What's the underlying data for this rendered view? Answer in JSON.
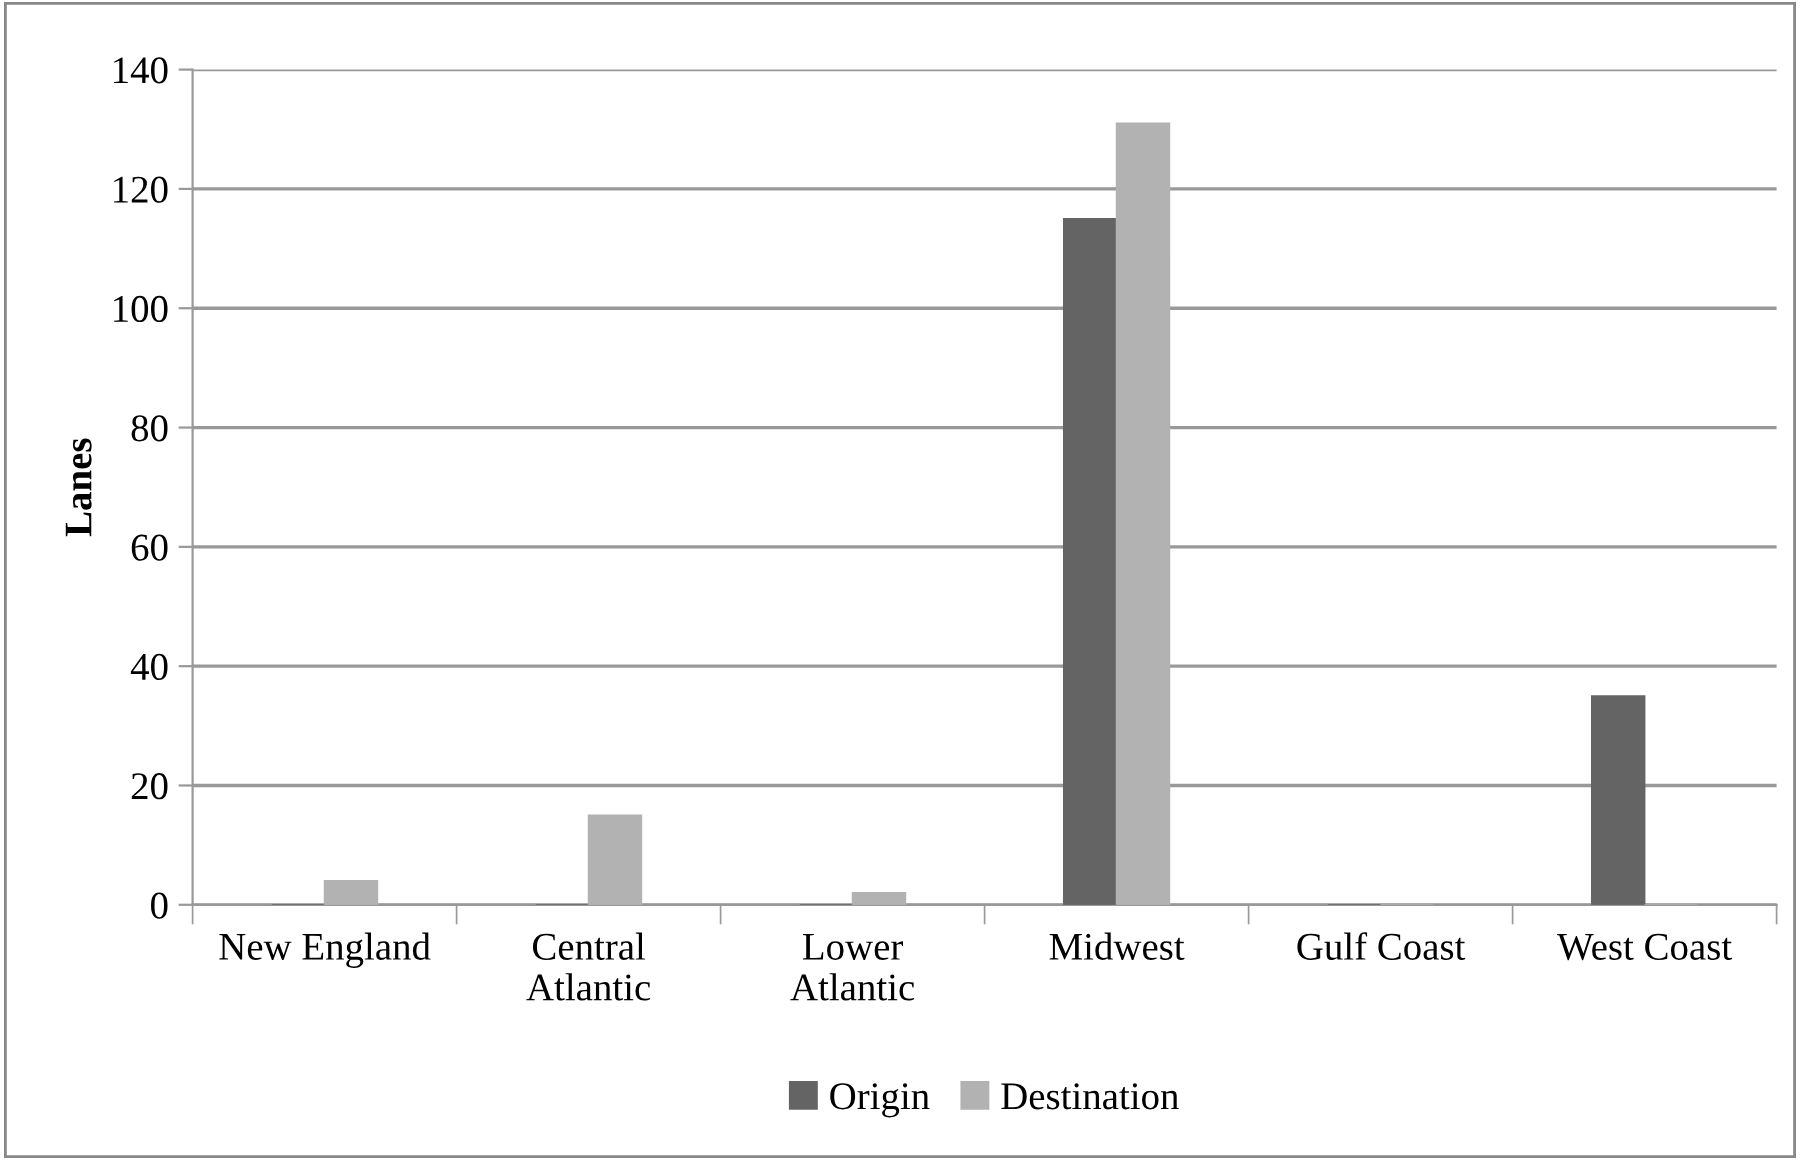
{
  "chart_data": {
    "type": "bar",
    "ylabel": "Lanes",
    "categories": [
      "New England",
      "Central\nAtlantic",
      "Lower\nAtlantic",
      "Midwest",
      "Gulf Coast",
      "West Coast"
    ],
    "series": [
      {
        "name": "Origin",
        "color": "#646464",
        "values": [
          0,
          0,
          0,
          115,
          0,
          35
        ]
      },
      {
        "name": "Destination",
        "color": "#b2b2b2",
        "values": [
          4,
          15,
          2,
          131,
          0,
          0
        ]
      }
    ],
    "ylim": [
      0,
      140
    ],
    "yticks": [
      0,
      20,
      40,
      60,
      80,
      100,
      120,
      140
    ],
    "grid": "y",
    "legend": "bottom"
  }
}
